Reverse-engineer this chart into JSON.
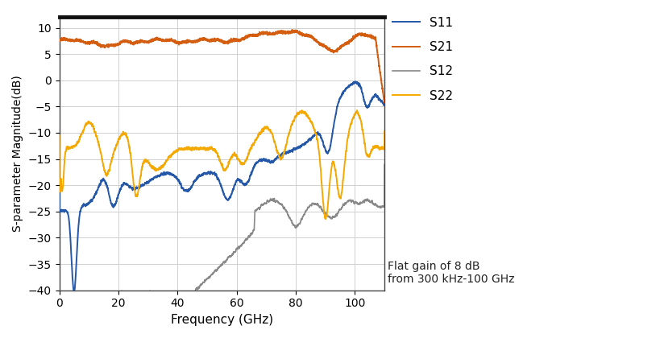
{
  "title": "",
  "xlabel": "Frequency (GHz)",
  "ylabel": "S-parameter Magnitude(dB)",
  "xlim": [
    0,
    110
  ],
  "ylim": [
    -40,
    12
  ],
  "yticks": [
    -40,
    -35,
    -30,
    -25,
    -20,
    -15,
    -10,
    -5,
    0,
    5,
    10
  ],
  "xticks": [
    0,
    20,
    40,
    60,
    80,
    100
  ],
  "annotation": "Flat gain of 8 dB\nfrom 300 kHz-100 GHz",
  "colors": {
    "S11": "#2457a8",
    "S21": "#d45d10",
    "S12": "#888888",
    "S22": "#f5a800"
  },
  "background_color": "#ffffff",
  "grid_color": "#d0d0d0",
  "top_border_color": "#1a1a1a"
}
